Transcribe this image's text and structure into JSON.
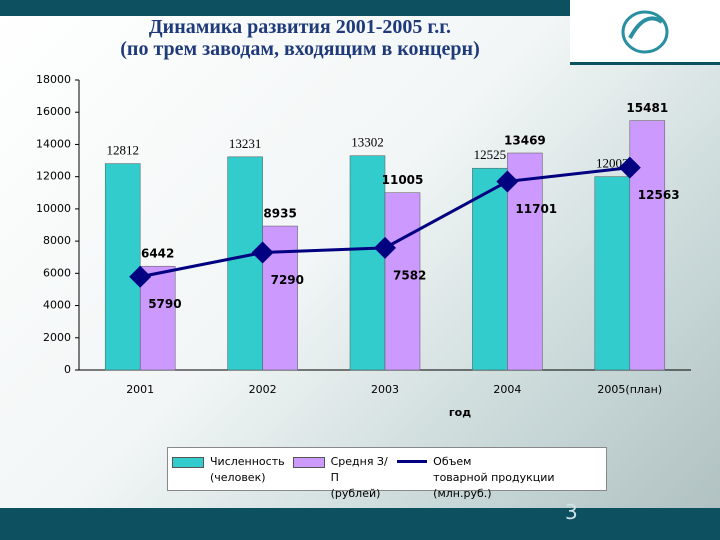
{
  "header": {
    "title_line1": "Динамика развития 2001-2005 г.г.",
    "title_line2": "(по трем заводам, входящим в концерн)"
  },
  "page_number": "3",
  "chart_data": {
    "type": "bar_line",
    "categories": [
      "2001",
      "2002",
      "2003",
      "2004",
      "2005(план)"
    ],
    "x_label": "год",
    "series": [
      {
        "name": "Численность\n(человек)",
        "type": "bar",
        "color": "#33cccc",
        "values": [
          12812,
          13231,
          13302,
          12525,
          12002
        ]
      },
      {
        "name": "Средня З/П\n(рублей)",
        "type": "bar",
        "color": "#cc99ff",
        "values": [
          6442,
          8935,
          11005,
          13469,
          15481
        ]
      },
      {
        "name": "Объем\nтоварной продукции (млн.руб.)",
        "type": "line",
        "color": "#000080",
        "values": [
          5790,
          7290,
          7582,
          11701,
          12563
        ]
      }
    ],
    "ylim": [
      0,
      18000
    ],
    "yticks": [
      0,
      2000,
      4000,
      6000,
      8000,
      10000,
      12000,
      14000,
      16000,
      18000
    ]
  }
}
